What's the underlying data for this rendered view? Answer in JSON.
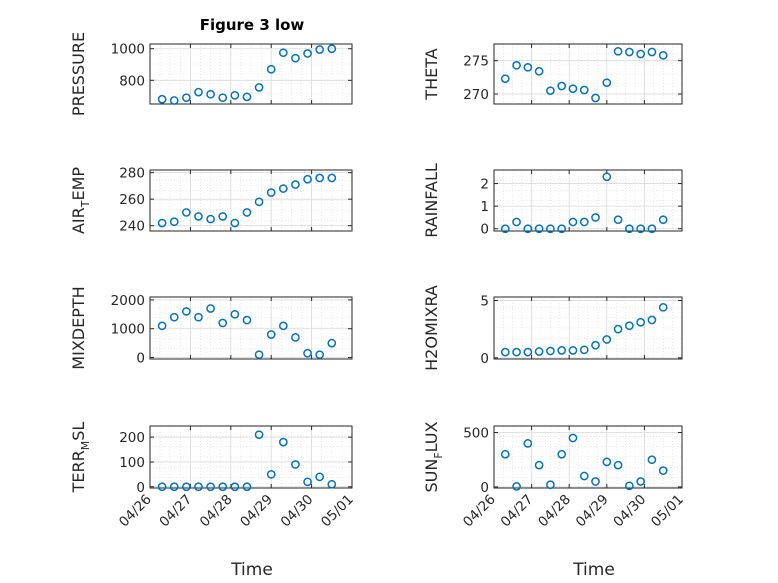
{
  "figure": {
    "title": "Figure 3 low",
    "xlabel": "Time",
    "x_tick_labels": [
      "04/26",
      "04/27",
      "04/28",
      "04/29",
      "04/30",
      "05/01"
    ],
    "marker_color": "#0072BD",
    "grid_color": "#d9d9d9",
    "axis_color": "#262626"
  },
  "chart_data": [
    {
      "type": "scatter",
      "name": "PRESSURE",
      "ylabel_main": "PRESSURE",
      "ylabel_sub": "",
      "ylabel_tail": "",
      "x": [
        "04/26",
        "04/27",
        "04/28",
        "04/29",
        "04/30",
        "05/01"
      ],
      "xlim": [
        0,
        5
      ],
      "ylim": [
        650,
        1030
      ],
      "yticks": [
        800,
        1000
      ],
      "series": [
        {
          "x": [
            0.3,
            0.6,
            0.9,
            1.2,
            1.5,
            1.8,
            2.1,
            2.4,
            2.7,
            3.0,
            3.3,
            3.6,
            3.9,
            4.2,
            4.5
          ],
          "y": [
            680,
            672,
            690,
            725,
            712,
            690,
            705,
            695,
            755,
            870,
            975,
            940,
            970,
            995,
            1000
          ]
        }
      ]
    },
    {
      "type": "scatter",
      "name": "THETA",
      "ylabel_main": "THETA",
      "ylabel_sub": "",
      "ylabel_tail": "",
      "x": [
        "04/26",
        "04/27",
        "04/28",
        "04/29",
        "04/30",
        "05/01"
      ],
      "xlim": [
        0,
        5
      ],
      "ylim": [
        268.5,
        277.5
      ],
      "yticks": [
        270,
        275
      ],
      "series": [
        {
          "x": [
            0.3,
            0.6,
            0.9,
            1.2,
            1.5,
            1.8,
            2.1,
            2.4,
            2.7,
            3.0,
            3.3,
            3.6,
            3.9,
            4.2,
            4.5
          ],
          "y": [
            272.3,
            274.3,
            274.0,
            273.4,
            270.5,
            271.2,
            270.8,
            270.6,
            269.4,
            271.7,
            276.4,
            276.3,
            276.0,
            276.3,
            275.8
          ]
        }
      ]
    },
    {
      "type": "scatter",
      "name": "AIR_TEMP",
      "ylabel_main": "AIR",
      "ylabel_sub": "T",
      "ylabel_tail": "EMP",
      "x": [
        "04/26",
        "04/27",
        "04/28",
        "04/29",
        "04/30",
        "05/01"
      ],
      "xlim": [
        0,
        5
      ],
      "ylim": [
        236,
        282
      ],
      "yticks": [
        240,
        260,
        280
      ],
      "series": [
        {
          "x": [
            0.3,
            0.6,
            0.9,
            1.2,
            1.5,
            1.8,
            2.1,
            2.4,
            2.7,
            3.0,
            3.3,
            3.6,
            3.9,
            4.2,
            4.5
          ],
          "y": [
            242,
            243,
            250,
            247,
            245,
            247,
            242,
            250,
            258,
            265,
            268,
            271,
            275,
            276,
            276
          ]
        }
      ]
    },
    {
      "type": "scatter",
      "name": "RAINFALL",
      "ylabel_main": "RAINFALL",
      "ylabel_sub": "",
      "ylabel_tail": "",
      "x": [
        "04/26",
        "04/27",
        "04/28",
        "04/29",
        "04/30",
        "05/01"
      ],
      "xlim": [
        0,
        5
      ],
      "ylim": [
        -0.1,
        2.6
      ],
      "yticks": [
        0,
        1,
        2
      ],
      "series": [
        {
          "x": [
            0.3,
            0.6,
            0.9,
            1.2,
            1.5,
            1.8,
            2.1,
            2.4,
            2.7,
            3.0,
            3.3,
            3.6,
            3.9,
            4.2,
            4.5
          ],
          "y": [
            0.0,
            0.3,
            0.0,
            0.0,
            0.0,
            0.0,
            0.3,
            0.3,
            0.5,
            2.3,
            0.4,
            0.0,
            0.0,
            0.0,
            0.4
          ]
        }
      ]
    },
    {
      "type": "scatter",
      "name": "MIXDEPTH",
      "ylabel_main": "MIXDEPTH",
      "ylabel_sub": "",
      "ylabel_tail": "",
      "x": [
        "04/26",
        "04/27",
        "04/28",
        "04/29",
        "04/30",
        "05/01"
      ],
      "xlim": [
        0,
        5
      ],
      "ylim": [
        -50,
        2100
      ],
      "yticks": [
        0,
        1000,
        2000
      ],
      "series": [
        {
          "x": [
            0.3,
            0.6,
            0.9,
            1.2,
            1.5,
            1.8,
            2.1,
            2.4,
            2.7,
            3.0,
            3.3,
            3.6,
            3.9,
            4.2,
            4.5
          ],
          "y": [
            1100,
            1400,
            1600,
            1400,
            1700,
            1200,
            1500,
            1300,
            100,
            800,
            1100,
            700,
            150,
            100,
            500
          ]
        }
      ]
    },
    {
      "type": "scatter",
      "name": "H2OMIXRA",
      "ylabel_main": "H2OMIXRA",
      "ylabel_sub": "",
      "ylabel_tail": "",
      "x": [
        "04/26",
        "04/27",
        "04/28",
        "04/29",
        "04/30",
        "05/01"
      ],
      "xlim": [
        0,
        5
      ],
      "ylim": [
        -0.1,
        5.3
      ],
      "yticks": [
        0,
        5
      ],
      "series": [
        {
          "x": [
            0.3,
            0.6,
            0.9,
            1.2,
            1.5,
            1.8,
            2.1,
            2.4,
            2.7,
            3.0,
            3.3,
            3.6,
            3.9,
            4.2,
            4.5
          ],
          "y": [
            0.5,
            0.5,
            0.5,
            0.55,
            0.6,
            0.65,
            0.65,
            0.7,
            1.1,
            1.6,
            2.5,
            2.8,
            3.1,
            3.3,
            4.4
          ]
        }
      ]
    },
    {
      "type": "scatter",
      "name": "TERR_MSL",
      "ylabel_main": "TERR",
      "ylabel_sub": "M",
      "ylabel_tail": "SL",
      "x": [
        "04/26",
        "04/27",
        "04/28",
        "04/29",
        "04/30",
        "05/01"
      ],
      "xlim": [
        0,
        5
      ],
      "ylim": [
        -5,
        245
      ],
      "yticks": [
        0,
        100,
        200
      ],
      "series": [
        {
          "x": [
            0.3,
            0.6,
            0.9,
            1.2,
            1.5,
            1.8,
            2.1,
            2.4,
            2.7,
            3.0,
            3.3,
            3.6,
            3.9,
            4.2,
            4.5
          ],
          "y": [
            0,
            0,
            0,
            0,
            0,
            0,
            0,
            0,
            210,
            50,
            180,
            90,
            20,
            40,
            10
          ]
        }
      ]
    },
    {
      "type": "scatter",
      "name": "SUN_FLUX",
      "ylabel_main": "SUN",
      "ylabel_sub": "F",
      "ylabel_tail": "LUX",
      "x": [
        "04/26",
        "04/27",
        "04/28",
        "04/29",
        "04/30",
        "05/01"
      ],
      "xlim": [
        0,
        5
      ],
      "ylim": [
        -10,
        560
      ],
      "yticks": [
        0,
        500
      ],
      "series": [
        {
          "x": [
            0.3,
            0.6,
            0.9,
            1.2,
            1.5,
            1.8,
            2.1,
            2.4,
            2.7,
            3.0,
            3.3,
            3.6,
            3.9,
            4.2,
            4.5
          ],
          "y": [
            300,
            5,
            400,
            200,
            20,
            300,
            450,
            100,
            50,
            230,
            200,
            10,
            50,
            250,
            150
          ]
        }
      ]
    }
  ]
}
